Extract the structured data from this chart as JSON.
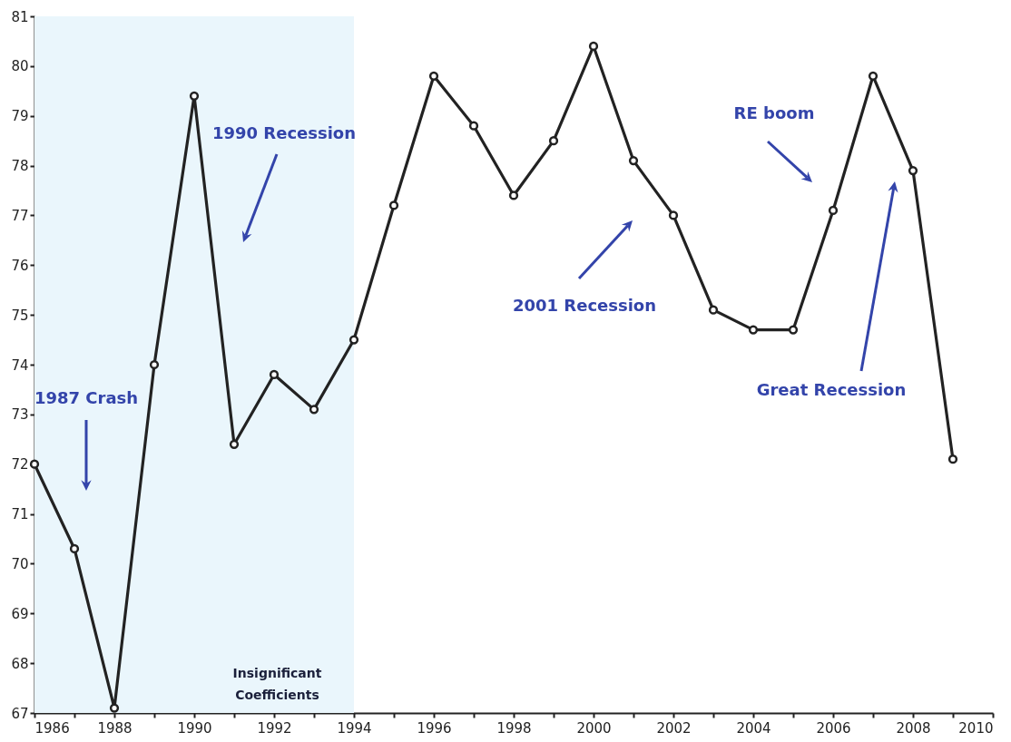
{
  "chart_data": {
    "type": "line",
    "x": [
      1986,
      1987,
      1988,
      1989,
      1990,
      1991,
      1992,
      1993,
      1994,
      1995,
      1996,
      1997,
      1998,
      1999,
      2000,
      2001,
      2002,
      2003,
      2004,
      2005,
      2006,
      2007,
      2008,
      2009
    ],
    "series": [
      {
        "color": "#222222",
        "values": [
          72.0,
          70.3,
          67.1,
          74.0,
          79.4,
          72.4,
          73.8,
          73.1,
          74.5,
          77.2,
          79.8,
          78.8,
          77.4,
          78.5,
          80.4,
          78.1,
          77.0,
          75.1,
          74.7,
          74.7,
          77.1,
          79.8,
          77.9,
          72.1
        ]
      }
    ],
    "xlim": [
      1986,
      2010
    ],
    "xticks": [
      1986,
      {
        "value": 1987,
        "label": null
      },
      1988,
      {
        "value": 1989,
        "label": null
      },
      1990,
      {
        "value": 1991,
        "label": null
      },
      1992,
      {
        "value": 1993,
        "label": null
      },
      1994,
      {
        "value": 1995,
        "label": null
      },
      1996,
      {
        "value": 1997,
        "label": null
      },
      1998,
      {
        "value": 1999,
        "label": null
      },
      2000,
      {
        "value": 2001,
        "label": null
      },
      2002,
      {
        "value": 2003,
        "label": null
      },
      2004,
      {
        "value": 2005,
        "label": null
      },
      2006,
      {
        "value": 2007,
        "label": null
      },
      2008,
      {
        "value": 2009,
        "label": null
      },
      2010
    ],
    "ylim": [
      67,
      81
    ],
    "yticks": [
      67,
      68,
      69,
      70,
      71,
      72,
      73,
      74,
      75,
      76,
      77,
      78,
      79,
      80,
      81
    ],
    "marker": "circle",
    "line_style": "solid",
    "bands": [
      {
        "axis": "x",
        "from": 1986,
        "to": 1994,
        "label": "Insignificant Coefficients",
        "color": "#eaf6fc"
      }
    ],
    "annotations": [
      "1987 Crash",
      "1990 Recession",
      "2001 Recession",
      "RE boom",
      "Great Recession"
    ]
  }
}
